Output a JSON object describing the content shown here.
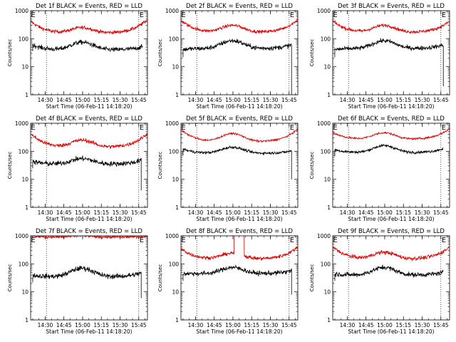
{
  "chart_data": [
    {
      "type": "line",
      "title": "Det 1f BLACK = Events, RED = LLD",
      "xlabel": "Start Time (06-Feb-11 14:18:20)",
      "ylabel": "Counts/sec",
      "yscale": "log",
      "ylim": [
        1,
        1000
      ],
      "x_ticks": [
        "14:30",
        "14:45",
        "15:00",
        "15:15",
        "15:30",
        "15:45"
      ],
      "marker_E": [
        "14:18",
        "15:45"
      ],
      "red": {
        "base": 160,
        "bump": 250,
        "left": 420,
        "right": 480,
        "noise": 0.09
      },
      "black": {
        "base": 40,
        "bump": 75,
        "left": 65,
        "right": 60,
        "noise": 0.12,
        "start": "14:20",
        "end": "15:48"
      }
    },
    {
      "type": "line",
      "title": "Det 2f BLACK = Events, RED = LLD",
      "xlabel": "Start Time (06-Feb-11 14:18:20)",
      "ylabel": "Counts/sec",
      "yscale": "log",
      "ylim": [
        1,
        1000
      ],
      "x_ticks": [
        "14:30",
        "14:45",
        "15:00",
        "15:15",
        "15:30",
        "15:45"
      ],
      "marker_E": [
        "14:18",
        "15:45"
      ],
      "red": {
        "base": 170,
        "bump": 300,
        "left": 450,
        "right": 480,
        "noise": 0.08
      },
      "black": {
        "base": 45,
        "bump": 85,
        "left": 40,
        "right": 75,
        "noise": 0.12,
        "start": "14:20",
        "end": "15:47",
        "drop_end": 1
      }
    },
    {
      "type": "line",
      "title": "Det 3f BLACK = Events, RED = LLD",
      "xlabel": "Start Time (06-Feb-11 14:18:20)",
      "ylabel": "Counts/sec",
      "yscale": "log",
      "ylim": [
        1,
        1000
      ],
      "x_ticks": [
        "14:30",
        "14:45",
        "15:00",
        "15:15",
        "15:30",
        "15:45"
      ],
      "marker_E": [
        "14:18",
        "15:45"
      ],
      "red": {
        "base": 170,
        "bump": 300,
        "left": 430,
        "right": 420,
        "noise": 0.08
      },
      "black": {
        "base": 45,
        "bump": 85,
        "left": 40,
        "right": 75,
        "noise": 0.11,
        "start": "14:20",
        "end": "15:47",
        "drop_end": 2
      }
    },
    {
      "type": "line",
      "title": "Det 4f BLACK = Events, RED = LLD",
      "xlabel": "Start Time (06-Feb-11 14:18:20)",
      "ylabel": "Counts/sec",
      "yscale": "log",
      "ylim": [
        1,
        1000
      ],
      "x_ticks": [
        "14:30",
        "14:45",
        "15:00",
        "15:15",
        "15:30",
        "15:45"
      ],
      "marker_E": [
        "14:18",
        "15:45"
      ],
      "red": {
        "base": 140,
        "bump": 250,
        "left": 420,
        "right": 430,
        "noise": 0.1
      },
      "black": {
        "base": 35,
        "bump": 55,
        "left": 45,
        "right": 60,
        "noise": 0.13,
        "start": "14:20",
        "end": "15:47",
        "drop_end": 4
      }
    },
    {
      "type": "line",
      "title": "Det 5f BLACK = Events, RED = LLD",
      "xlabel": "Start Time (06-Feb-11 14:18:20)",
      "ylabel": "Counts/sec",
      "yscale": "log",
      "ylim": [
        1,
        1000
      ],
      "x_ticks": [
        "14:30",
        "14:45",
        "15:00",
        "15:15",
        "15:30",
        "15:45"
      ],
      "marker_E": [
        "14:18",
        "15:45"
      ],
      "red": {
        "base": 220,
        "bump": 430,
        "left": 600,
        "right": 620,
        "noise": 0.05
      },
      "black": {
        "base": 85,
        "bump": 140,
        "left": 130,
        "right": 120,
        "noise": 0.07,
        "start": "14:20",
        "end": "15:47",
        "drop_end": 10
      }
    },
    {
      "type": "line",
      "title": "Det 6f BLACK = Events, RED = LLD",
      "xlabel": "Start Time (06-Feb-11 14:18:20)",
      "ylabel": "Counts/sec",
      "yscale": "log",
      "ylim": [
        1,
        1000
      ],
      "x_ticks": [
        "14:30",
        "14:45",
        "15:00",
        "15:15",
        "15:30",
        "15:45"
      ],
      "marker_E": [
        "14:18",
        "15:45"
      ],
      "red": {
        "base": 270,
        "bump": 460,
        "left": 480,
        "right": 650,
        "noise": 0.05
      },
      "black": {
        "base": 90,
        "bump": 160,
        "left": 120,
        "right": 160,
        "noise": 0.07,
        "start": "14:20",
        "end": "15:47"
      }
    },
    {
      "type": "line",
      "title": "Det 7f BLACK = Events, RED = LLD",
      "xlabel": "Start Time (06-Feb-11 14:18:20)",
      "ylabel": "Counts/sec",
      "yscale": "log",
      "ylim": [
        1,
        1000
      ],
      "x_ticks": [
        "14:30",
        "14:45",
        "15:00",
        "15:15",
        "15:30",
        "15:45"
      ],
      "marker_E": [
        "14:18",
        "15:45"
      ],
      "red": {
        "base": 900,
        "bump": 1000,
        "left": 1000,
        "right": 1000,
        "noise": 0.07
      },
      "black": {
        "base": 35,
        "bump": 70,
        "left": 40,
        "right": 60,
        "noise": 0.13,
        "start": "14:20",
        "end": "15:47",
        "drop_end": 6
      }
    },
    {
      "type": "line",
      "title": "Det 8f BLACK = Events, RED = LLD",
      "xlabel": "Start Time (06-Feb-11 14:18:20)",
      "ylabel": "Counts/sec",
      "yscale": "log",
      "ylim": [
        1,
        1000
      ],
      "x_ticks": [
        "14:30",
        "14:45",
        "15:00",
        "15:15",
        "15:30",
        "15:45"
      ],
      "marker_E": [
        "14:18",
        "15:45"
      ],
      "red": {
        "base": 150,
        "bump": 240,
        "left": 350,
        "right": 400,
        "noise": 0.09,
        "spike": [
          "15:01",
          "15:09"
        ]
      },
      "black": {
        "base": 45,
        "bump": 75,
        "left": 45,
        "right": 70,
        "noise": 0.12,
        "start": "14:20",
        "end": "15:47",
        "drop_end": 8
      }
    },
    {
      "type": "line",
      "title": "Det 9f BLACK = Events, RED = LLD",
      "xlabel": "Start Time (06-Feb-11 14:18:20)",
      "ylabel": "Counts/sec",
      "yscale": "log",
      "ylim": [
        1,
        1000
      ],
      "x_ticks": [
        "14:30",
        "14:45",
        "15:00",
        "15:15",
        "15:30",
        "15:45"
      ],
      "marker_E": [
        "14:18",
        "15:45"
      ],
      "red": {
        "base": 150,
        "bump": 260,
        "left": 400,
        "right": 400,
        "noise": 0.1
      },
      "black": {
        "base": 40,
        "bump": 75,
        "left": 45,
        "right": 60,
        "noise": 0.12,
        "start": "14:20",
        "end": "15:47"
      }
    }
  ],
  "y_tick_labels": [
    "1",
    "10",
    "100",
    "1000"
  ],
  "marker_label": "E",
  "colors": {
    "events": "#000000",
    "lld": "#dd0000",
    "axes": "#000000"
  }
}
